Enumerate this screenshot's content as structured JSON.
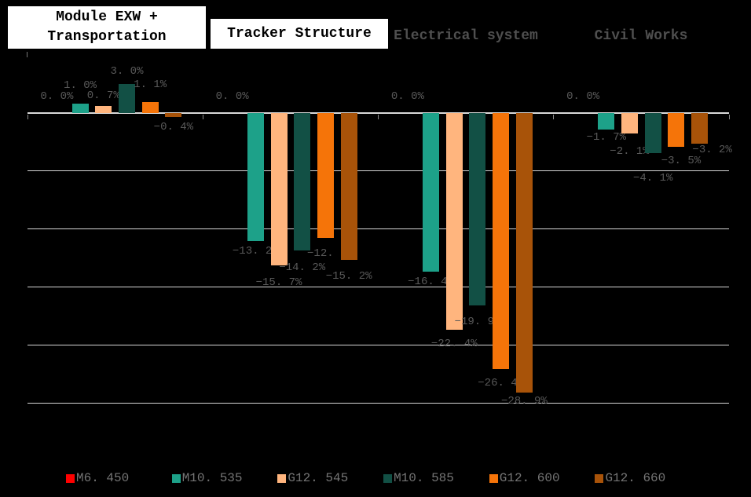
{
  "headers": [
    {
      "line1": "Module EXW +",
      "line2": "Transportation"
    },
    {
      "line1": "Tracker Structure"
    },
    {
      "line1": "Electrical system"
    },
    {
      "line1": "Civil Works"
    }
  ],
  "chart_data": {
    "type": "bar",
    "title": "",
    "unit": "%",
    "categories": [
      "Module EXW + Transportation",
      "Tracker Structure",
      "Electrical system",
      "Civil Works"
    ],
    "axis": {
      "min": -30,
      "max": 6,
      "gridline_step": 6,
      "tick_labels_visible": false,
      "grid": true
    },
    "legend_position": "bottom",
    "background_color": "#000000",
    "gridline_color": "#D6D6D6",
    "label_color": "#595959",
    "series": [
      {
        "name": "M6. 450",
        "color": "#FF0000",
        "points": [
          {
            "v": 0,
            "label": "0. 0%"
          },
          {
            "v": 0,
            "label": "0. 0%"
          },
          {
            "v": 0,
            "label": "0. 0%"
          },
          {
            "v": 0,
            "label": "0. 0%"
          }
        ]
      },
      {
        "name": "M10. 535",
        "color": "#1DA189",
        "points": [
          {
            "v": 1.0,
            "label": "1. 0%",
            "dy": -10
          },
          {
            "v": -13.2,
            "label": "−13. 2%"
          },
          {
            "v": -16.4,
            "label": "−16. 4%"
          },
          {
            "v": -1.7,
            "label": "−1. 7%",
            "dy": -3
          }
        ]
      },
      {
        "name": "G12. 545",
        "color": "#FFB57E",
        "points": [
          {
            "v": 0.7,
            "label": "0. 7%"
          },
          {
            "v": -15.7,
            "label": "−15. 7%",
            "dy": 9
          },
          {
            "v": -22.4,
            "label": "−22. 4%",
            "dy": 5
          },
          {
            "v": -2.1,
            "label": "−2. 1%",
            "dy": 10
          }
        ]
      },
      {
        "name": "M10. 585",
        "color": "#125045",
        "points": [
          {
            "v": 3.0,
            "label": "3. 0%",
            "dy": -3
          },
          {
            "v": -14.2,
            "label": "−14. 2%",
            "dy": 9
          },
          {
            "v": -19.9,
            "label": "−19. 9%",
            "dy": 8
          },
          {
            "v": -4.1,
            "label": "−4. 1%",
            "dy": 19
          }
        ]
      },
      {
        "name": "G12. 600",
        "color": "#F57409",
        "points": [
          {
            "v": 1.1,
            "label": "1. 1%",
            "dy": -9
          },
          {
            "v": -12.9,
            "label": "−12. 9%",
            "dy": 7,
            "dx": 6
          },
          {
            "v": -26.4,
            "label": "−26. 4%",
            "dy": 5
          },
          {
            "v": -3.5,
            "label": "−3. 5%",
            "dy": 5,
            "dx": 6
          }
        ]
      },
      {
        "name": "G12. 660",
        "color": "#A85309",
        "points": [
          {
            "v": -0.4,
            "label": "−0. 4%"
          },
          {
            "v": -15.2,
            "label": "−15. 2%",
            "dy": 8
          },
          {
            "v": -28.9,
            "label": "−28. 9%",
            "dy": -2
          },
          {
            "v": -3.2,
            "label": "−3. 2%",
            "dy": -5,
            "dx": 16
          }
        ]
      }
    ]
  }
}
